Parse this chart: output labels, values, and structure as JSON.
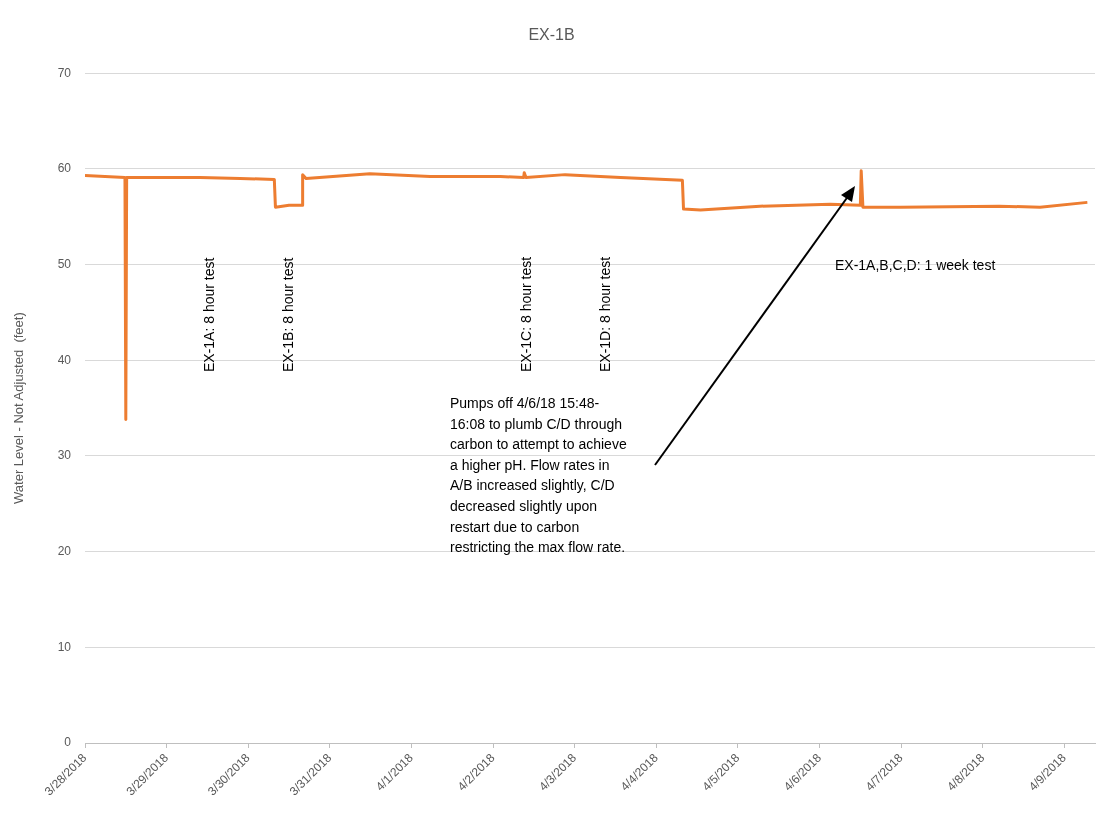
{
  "chart_data": {
    "type": "line",
    "title": "EX-1B",
    "ylabel": "Water Level - Not Adjusted  (feet)",
    "x": [
      "2018-03-28T00:00",
      "2018-03-28T11:45",
      "2018-03-28T12:00",
      "2018-03-28T12:15",
      "2018-03-29T09:50",
      "2018-03-29T21:36",
      "2018-03-30T07:40",
      "2018-03-30T08:00",
      "2018-03-30T12:00",
      "2018-03-30T15:50",
      "2018-03-30T16:00",
      "2018-03-30T17:00",
      "2018-03-31T11:45",
      "2018-04-01T05:30",
      "2018-04-02T02:10",
      "2018-04-02T09:00",
      "2018-04-02T09:10",
      "2018-04-02T09:40",
      "2018-04-02T21:10",
      "2018-04-03T13:30",
      "2018-04-04T07:40",
      "2018-04-04T08:00",
      "2018-04-04T13:00",
      "2018-04-05T06:30",
      "2018-04-06T03:10",
      "2018-04-06T12:00",
      "2018-04-06T12:15",
      "2018-04-06T12:45",
      "2018-04-06T23:45",
      "2018-04-08T04:50",
      "2018-04-08T16:50",
      "2018-04-09T06:45"
    ],
    "series": [
      {
        "color": "#ed7d31",
        "values": [
          59.3,
          59.1,
          33.8,
          59.1,
          59.1,
          59.0,
          58.9,
          56.0,
          56.2,
          56.2,
          59.4,
          59.0,
          59.5,
          59.2,
          59.2,
          59.1,
          59.6,
          59.1,
          59.4,
          59.1,
          58.8,
          55.8,
          55.7,
          56.1,
          56.3,
          56.2,
          59.8,
          56.0,
          56.0,
          56.1,
          56.0,
          56.5
        ]
      }
    ],
    "xlim": [
      "2018-03-28",
      "2018-04-09T09:00"
    ],
    "xticks": [
      {
        "value": "2018-03-28",
        "label": "3/28/2018"
      },
      {
        "value": "2018-03-29",
        "label": "3/29/2018"
      },
      {
        "value": "2018-03-30",
        "label": "3/30/2018"
      },
      {
        "value": "2018-03-31",
        "label": "3/31/2018"
      },
      {
        "value": "2018-04-01",
        "label": "4/1/2018"
      },
      {
        "value": "2018-04-02",
        "label": "4/2/2018"
      },
      {
        "value": "2018-04-03",
        "label": "4/3/2018"
      },
      {
        "value": "2018-04-04",
        "label": "4/4/2018"
      },
      {
        "value": "2018-04-05",
        "label": "4/5/2018"
      },
      {
        "value": "2018-04-06",
        "label": "4/6/2018"
      },
      {
        "value": "2018-04-07",
        "label": "4/7/2018"
      },
      {
        "value": "2018-04-08",
        "label": "4/8/2018"
      },
      {
        "value": "2018-04-09",
        "label": "4/9/2018"
      }
    ],
    "ylim": [
      0,
      70
    ],
    "yticks": [
      0,
      10,
      20,
      30,
      40,
      50,
      60,
      70
    ],
    "grid": "y",
    "marker": "none",
    "line_style": "solid",
    "annotations": [
      "EX-1A: 8 hour test",
      "EX-1B: 8 hour test",
      "EX-1C: 8 hour test",
      "EX-1D: 8 hour test",
      "EX-1A,B,C,D: 1 week test",
      "Pumps off 4/6/18 15:48-16:08 to plumb C/D through carbon to attempt to achieve a higher pH.  Flow rates in A/B increased slightly, C/D decreased slightly upon restart due to carbon restricting the max flow rate."
    ]
  }
}
